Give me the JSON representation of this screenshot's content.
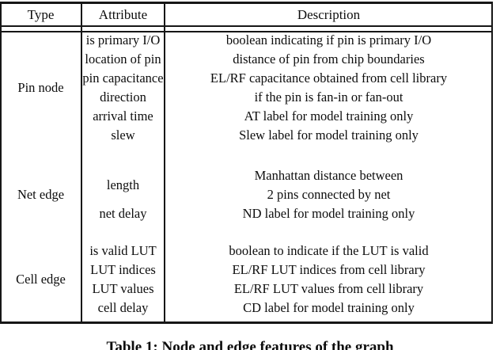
{
  "table": {
    "headers": [
      "Type",
      "Attribute",
      "Description"
    ],
    "groups": [
      {
        "type": "Pin node",
        "rows": [
          {
            "attribute": "is primary I/O",
            "desc": [
              "boolean indicating if pin is primary I/O"
            ]
          },
          {
            "attribute": "location of pin",
            "desc": [
              "distance of pin from chip boundaries"
            ]
          },
          {
            "attribute": "pin capacitance",
            "desc": [
              "EL/RF capacitance obtained from cell library"
            ]
          },
          {
            "attribute": "direction",
            "desc": [
              "if the pin is fan-in or fan-out"
            ]
          },
          {
            "attribute": "arrival time",
            "desc": [
              "AT label for model training only"
            ]
          },
          {
            "attribute": "slew",
            "desc": [
              "Slew label for model training only"
            ]
          }
        ]
      },
      {
        "type": "Net edge",
        "rows": [
          {
            "attribute": "length",
            "desc": [
              "Manhattan distance between",
              "2 pins connected by net"
            ]
          },
          {
            "attribute": "net delay",
            "desc": [
              "ND label for model training only"
            ]
          }
        ]
      },
      {
        "type": "Cell edge",
        "rows": [
          {
            "attribute": "is valid LUT",
            "desc": [
              "boolean to indicate if the LUT is valid"
            ]
          },
          {
            "attribute": "LUT indices",
            "desc": [
              "EL/RF LUT indices from cell library"
            ]
          },
          {
            "attribute": "LUT values",
            "desc": [
              "EL/RF LUT values from cell library"
            ]
          },
          {
            "attribute": "cell delay",
            "desc": [
              "CD label for model training only"
            ]
          }
        ]
      }
    ],
    "caption": "Table 1: Node and edge features of the graph"
  },
  "colors": {
    "background": "#ffffff",
    "text": "#0d0d0d",
    "rule": "#161616"
  }
}
